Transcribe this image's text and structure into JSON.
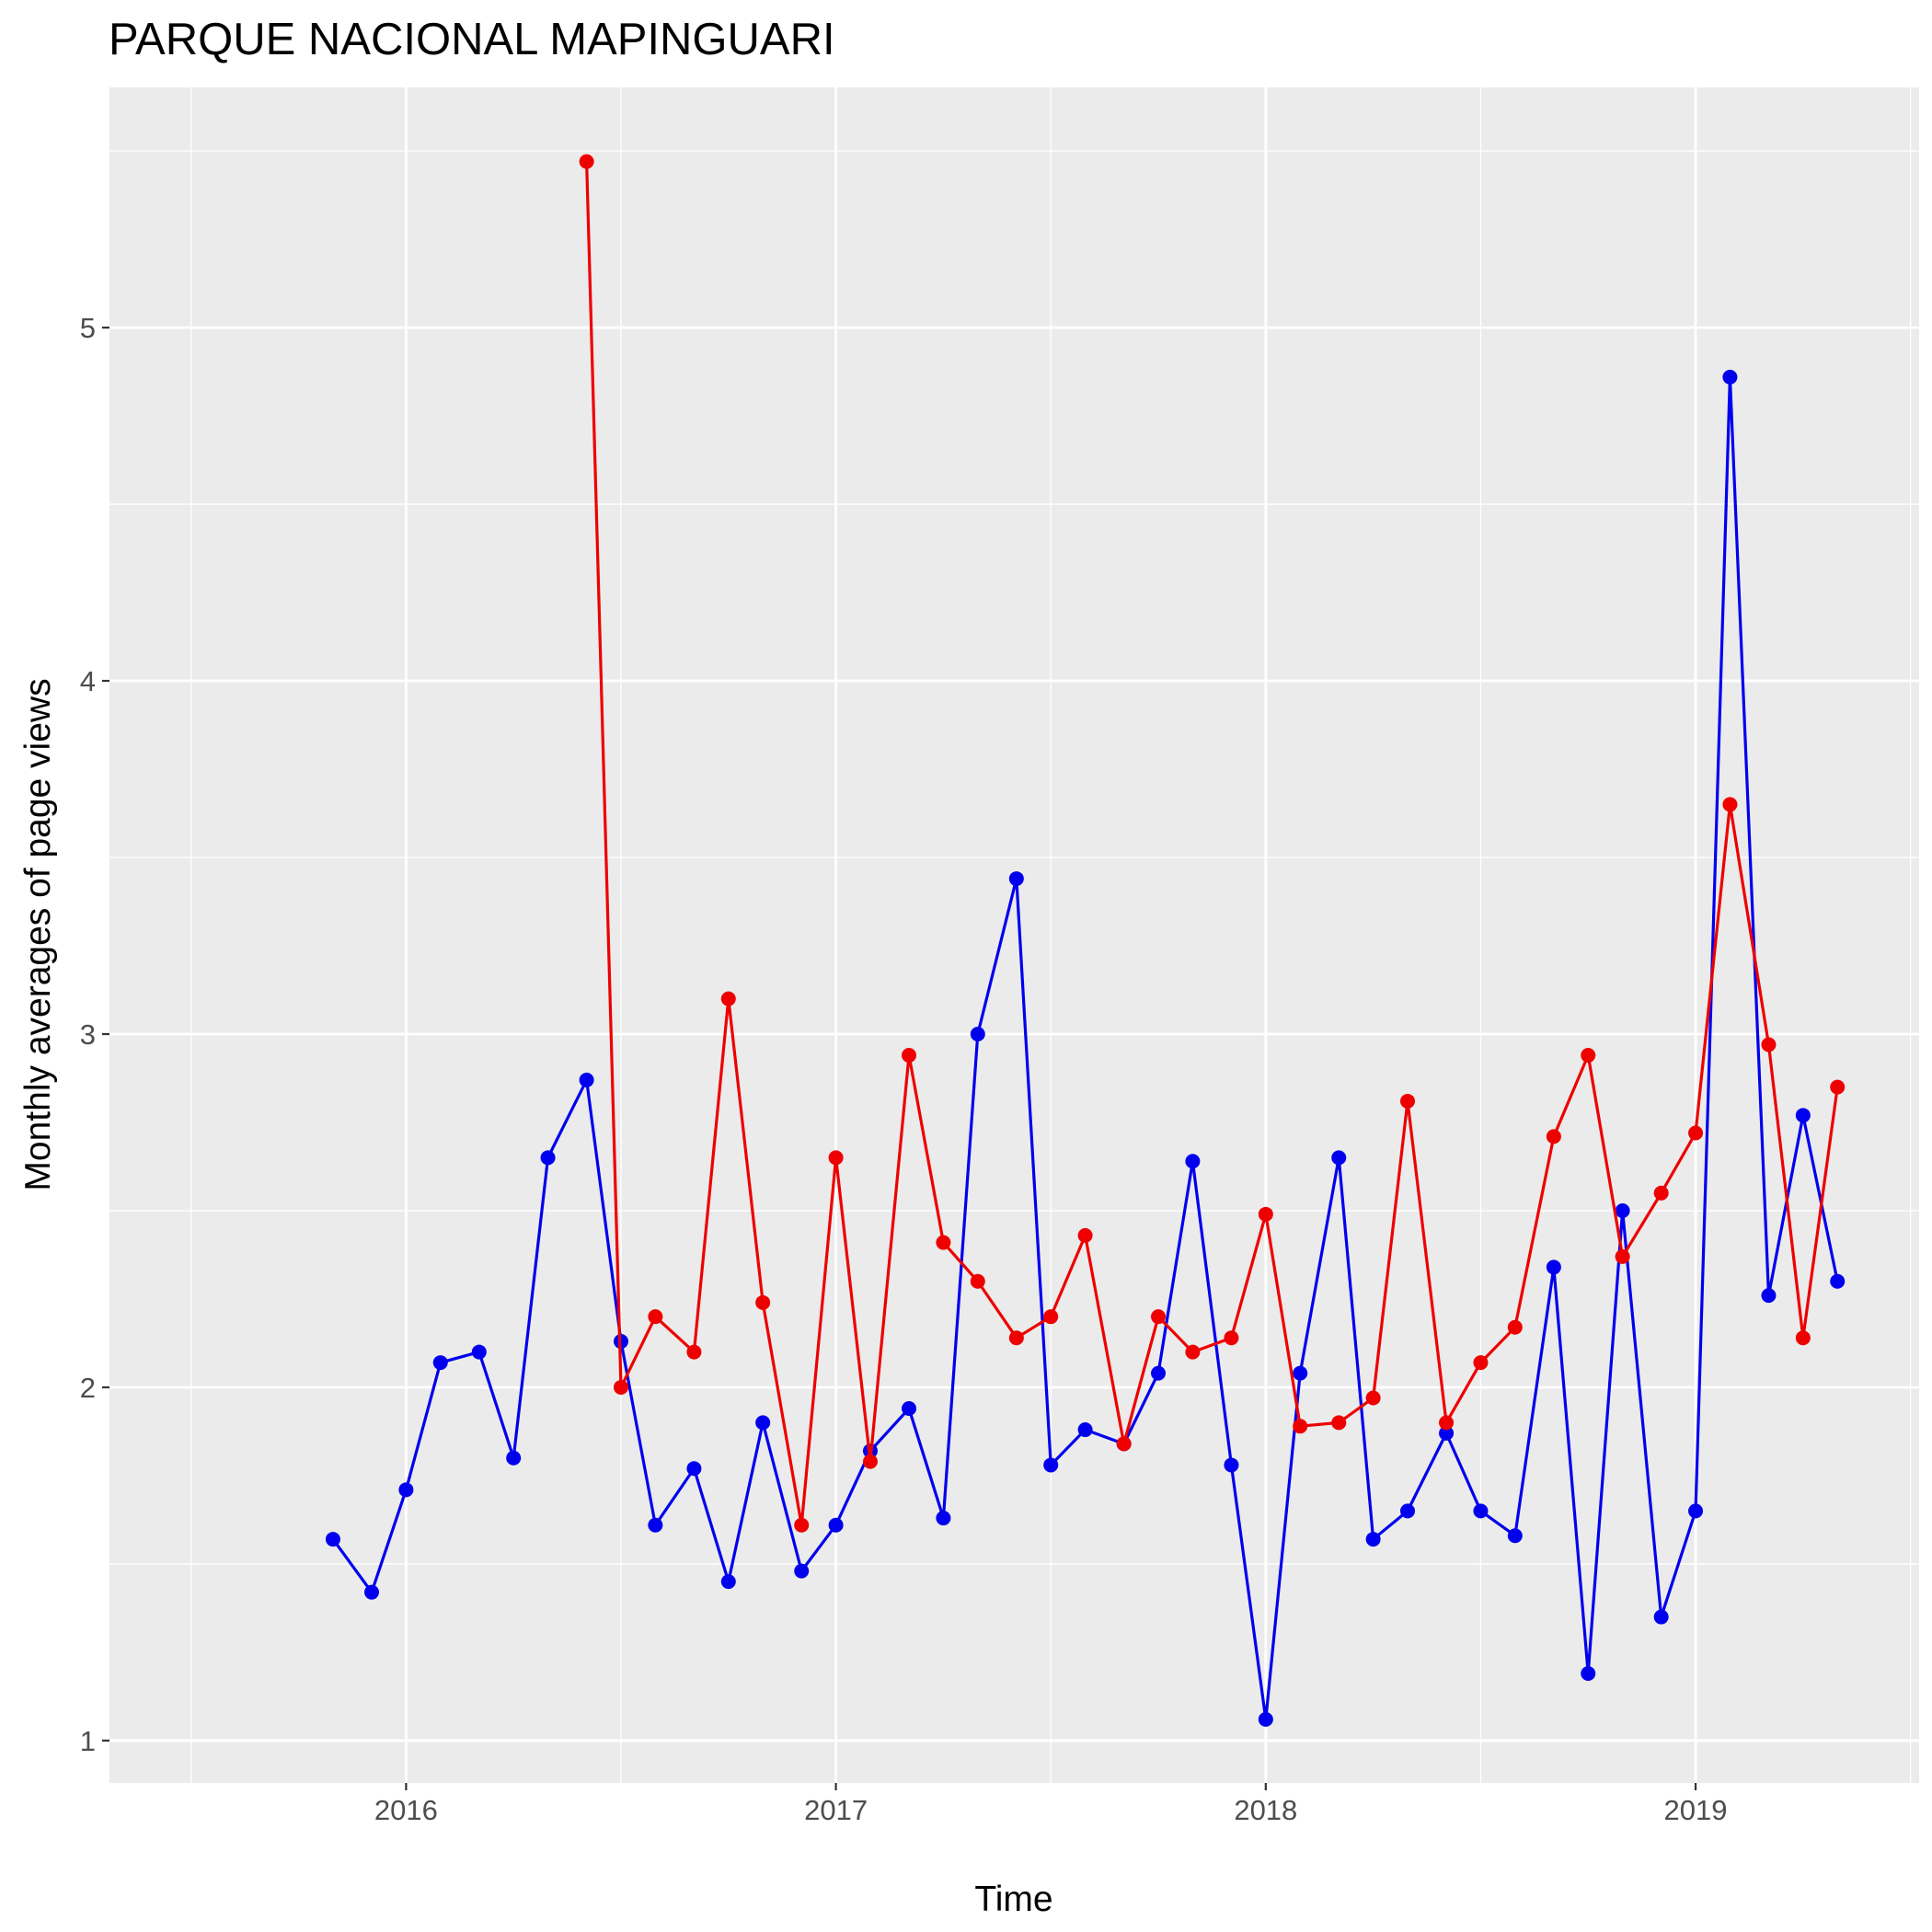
{
  "chart_data": {
    "type": "line",
    "title": "PARQUE NACIONAL MAPINGUARI",
    "xlabel": "Time",
    "ylabel": "Monthly averages of page views",
    "x_ticks": [
      2016,
      2017,
      2018,
      2019
    ],
    "y_ticks": [
      1,
      2,
      3,
      4,
      5
    ],
    "xlim": [
      2015.31,
      2019.52
    ],
    "ylim": [
      0.88,
      5.68
    ],
    "grid": true,
    "legend": "none",
    "series": [
      {
        "color": "#0000ee",
        "points": [
          [
            2015.83,
            1.57
          ],
          [
            2015.92,
            1.42
          ],
          [
            2016.0,
            1.71
          ],
          [
            2016.08,
            2.07
          ],
          [
            2016.17,
            2.1
          ],
          [
            2016.25,
            1.8
          ],
          [
            2016.33,
            2.65
          ],
          [
            2016.42,
            2.87
          ],
          [
            2016.5,
            2.13
          ],
          [
            2016.58,
            1.61
          ],
          [
            2016.67,
            1.77
          ],
          [
            2016.75,
            1.45
          ],
          [
            2016.83,
            1.9
          ],
          [
            2016.92,
            1.48
          ],
          [
            2017.0,
            1.61
          ],
          [
            2017.08,
            1.82
          ],
          [
            2017.17,
            1.94
          ],
          [
            2017.25,
            1.63
          ],
          [
            2017.33,
            3.0
          ],
          [
            2017.42,
            3.44
          ],
          [
            2017.5,
            1.78
          ],
          [
            2017.58,
            1.88
          ],
          [
            2017.67,
            1.84
          ],
          [
            2017.75,
            2.04
          ],
          [
            2017.83,
            2.64
          ],
          [
            2017.92,
            1.78
          ],
          [
            2018.0,
            1.06
          ],
          [
            2018.08,
            2.04
          ],
          [
            2018.17,
            2.65
          ],
          [
            2018.25,
            1.57
          ],
          [
            2018.33,
            1.65
          ],
          [
            2018.42,
            1.87
          ],
          [
            2018.5,
            1.65
          ],
          [
            2018.58,
            1.58
          ],
          [
            2018.67,
            2.34
          ],
          [
            2018.75,
            1.19
          ],
          [
            2018.83,
            2.5
          ],
          [
            2018.92,
            1.35
          ],
          [
            2019.0,
            1.65
          ],
          [
            2019.08,
            4.86
          ],
          [
            2019.17,
            2.26
          ],
          [
            2019.25,
            2.77
          ],
          [
            2019.33,
            2.3
          ]
        ]
      },
      {
        "color": "#ee0000",
        "points": [
          [
            2016.42,
            5.47
          ],
          [
            2016.5,
            2.0
          ],
          [
            2016.58,
            2.2
          ],
          [
            2016.67,
            2.1
          ],
          [
            2016.75,
            3.1
          ],
          [
            2016.83,
            2.24
          ],
          [
            2016.92,
            1.61
          ],
          [
            2017.0,
            2.65
          ],
          [
            2017.08,
            1.79
          ],
          [
            2017.17,
            2.94
          ],
          [
            2017.25,
            2.41
          ],
          [
            2017.33,
            2.3
          ],
          [
            2017.42,
            2.14
          ],
          [
            2017.5,
            2.2
          ],
          [
            2017.58,
            2.43
          ],
          [
            2017.67,
            1.84
          ],
          [
            2017.75,
            2.2
          ],
          [
            2017.83,
            2.1
          ],
          [
            2017.92,
            2.14
          ],
          [
            2018.0,
            2.49
          ],
          [
            2018.08,
            1.89
          ],
          [
            2018.17,
            1.9
          ],
          [
            2018.25,
            1.97
          ],
          [
            2018.33,
            2.81
          ],
          [
            2018.42,
            1.9
          ],
          [
            2018.5,
            2.07
          ],
          [
            2018.58,
            2.17
          ],
          [
            2018.67,
            2.71
          ],
          [
            2018.75,
            2.94
          ],
          [
            2018.83,
            2.37
          ],
          [
            2018.92,
            2.55
          ],
          [
            2019.0,
            2.72
          ],
          [
            2019.08,
            3.65
          ],
          [
            2019.17,
            2.97
          ],
          [
            2019.25,
            2.14
          ],
          [
            2019.33,
            2.85
          ]
        ]
      }
    ]
  }
}
